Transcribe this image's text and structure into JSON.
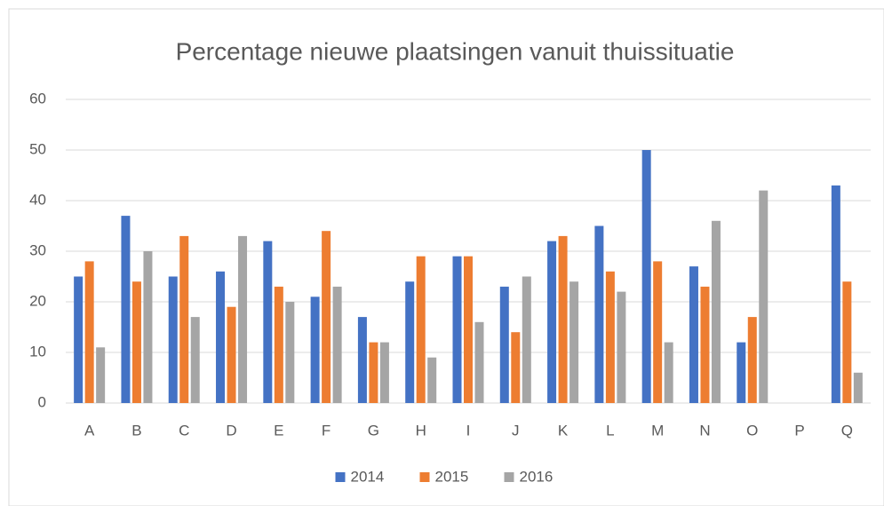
{
  "chart_data": {
    "type": "bar",
    "title": "Percentage nieuwe plaatsingen vanuit thuissituatie",
    "categories": [
      "A",
      "B",
      "C",
      "D",
      "E",
      "F",
      "G",
      "H",
      "I",
      "J",
      "K",
      "L",
      "M",
      "N",
      "O",
      "P",
      "Q"
    ],
    "series": [
      {
        "name": "2014",
        "color": "#4472c4",
        "values": [
          25,
          37,
          25,
          26,
          32,
          21,
          17,
          24,
          29,
          23,
          32,
          35,
          50,
          27,
          12,
          null,
          43
        ]
      },
      {
        "name": "2015",
        "color": "#ed7d31",
        "values": [
          28,
          24,
          33,
          19,
          23,
          34,
          12,
          29,
          29,
          14,
          33,
          26,
          28,
          23,
          17,
          null,
          24
        ]
      },
      {
        "name": "2016",
        "color": "#a5a5a5",
        "values": [
          11,
          30,
          17,
          33,
          20,
          23,
          12,
          9,
          16,
          25,
          24,
          22,
          12,
          36,
          42,
          null,
          6
        ]
      }
    ],
    "ylim": [
      0,
      60
    ],
    "yticks": [
      0,
      10,
      20,
      30,
      40,
      50,
      60
    ],
    "grid": true,
    "legend": "bottom"
  }
}
